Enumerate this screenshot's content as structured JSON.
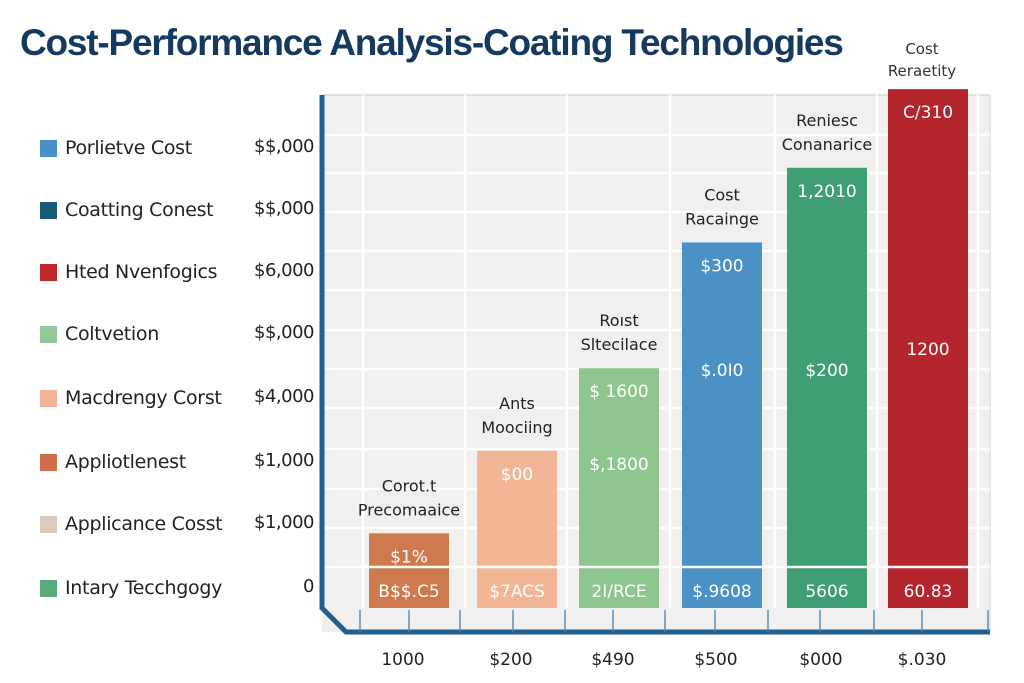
{
  "chart_data": {
    "type": "bar",
    "title": "Cost-Performance Analysis-Coating Technologies",
    "corner_label": [
      "Cost",
      "Reraetity"
    ],
    "xlabel": "",
    "ylabel": "",
    "ylim": [
      0,
      13
    ],
    "grid": true,
    "legend_position": "left",
    "legend": [
      {
        "label": "Porlietve Cost",
        "color": "#4a90c8"
      },
      {
        "label": "Coatting Conest",
        "color": "#185a78"
      },
      {
        "label": "Hted Nvenfogics",
        "color": "#c0272d"
      },
      {
        "label": "Coltvetion",
        "color": "#93c799"
      },
      {
        "label": "Macdrengy Corst",
        "color": "#f2b597"
      },
      {
        "label": "Appliotlenest",
        "color": "#cf6e47"
      },
      {
        "label": "Applicance Cosst",
        "color": "#d9cbbd"
      },
      {
        "label": "Intary Tecchgogy",
        "color": "#5aaa7c"
      }
    ],
    "y_tick_labels": [
      "$$,000",
      "$$,000",
      "$6,000",
      "$$,000",
      "$4,000",
      "$1,000",
      "$1,000",
      "0"
    ],
    "categories": [
      "1000",
      "$200",
      "$490",
      "$500",
      "$000",
      "$.030"
    ],
    "values": [
      1.9,
      4.0,
      6.1,
      9.3,
      11.2,
      13.2
    ],
    "bar_colors": [
      "#cf7a4e",
      "#f2b596",
      "#8fc68e",
      "#4b91c6",
      "#3f9e72",
      "#b5252d"
    ],
    "annotations": [
      [
        "Corot.t",
        "Precomaaice"
      ],
      [
        "Ants",
        "Moociing"
      ],
      [
        "Roıst",
        "Sltecilace"
      ],
      [
        "Cost",
        "Racainge"
      ],
      [
        "Reniesc",
        "Conanarice"
      ],
      []
    ],
    "bar_top_labels": [
      "$1%",
      "$00",
      "$ 1600",
      "$300",
      "1,2010",
      "C/310"
    ],
    "bar_mid_labels": [
      "",
      "",
      "$,1800",
      "$.0I0",
      "$200",
      "1200"
    ],
    "bar_bottom_labels": [
      "B$$.C5",
      "$7ACS",
      "2I/RCE",
      "$.9608",
      "5606",
      "60.83"
    ]
  }
}
